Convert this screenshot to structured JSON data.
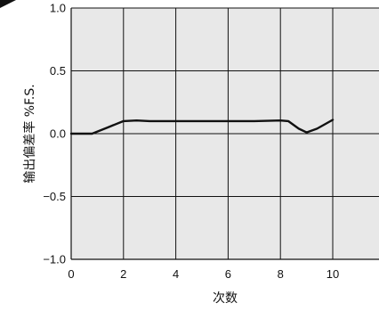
{
  "chart_data": {
    "type": "line",
    "title": "",
    "xlabel": "次数",
    "ylabel": "输出偏差率 %F.S.",
    "xlim": [
      0,
      12
    ],
    "ylim": [
      -1.0,
      1.0
    ],
    "x_ticks": [
      "0",
      "2",
      "4",
      "6",
      "8",
      "10"
    ],
    "y_ticks": [
      "1.0",
      "0.5",
      "0.0",
      "−0.5",
      "−1.0"
    ],
    "grid": true,
    "series": [
      {
        "x": [
          0,
          0.8,
          1.4,
          2,
          2.5,
          3,
          4,
          5,
          6,
          7,
          8,
          8.3,
          8.7,
          9,
          9.4,
          10
        ],
        "values": [
          0.0,
          0.0,
          0.05,
          0.1,
          0.105,
          0.1,
          0.1,
          0.1,
          0.1,
          0.1,
          0.105,
          0.1,
          0.04,
          0.01,
          0.04,
          0.11
        ]
      }
    ]
  },
  "colors": {
    "plot_bg": "#e8e8e8",
    "grid": "#111111",
    "line": "#111111"
  }
}
